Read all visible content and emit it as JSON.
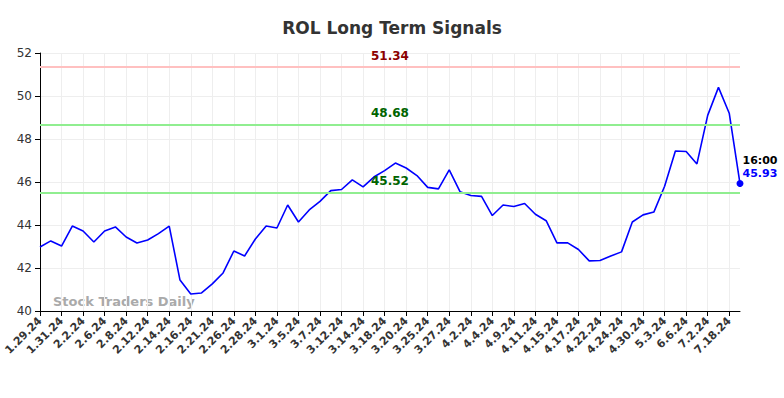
{
  "chart_data": {
    "type": "line",
    "title": "ROL Long Term Signals",
    "categories": [
      "1.29.24",
      null,
      "1.31.24",
      null,
      "2.2.24",
      null,
      "2.6.24",
      null,
      "2.8.24",
      null,
      "2.12.24",
      null,
      "2.14.24",
      null,
      "2.16.24",
      null,
      "2.21.24",
      null,
      "2.26.24",
      null,
      "2.28.24",
      null,
      "3.1.24",
      null,
      "3.5.24",
      null,
      "3.7.24",
      null,
      "3.12.24",
      null,
      "3.14.24",
      null,
      "3.18.24",
      null,
      "3.20.24",
      null,
      "3.25.24",
      null,
      "3.27.24",
      null,
      "4.2.24",
      null,
      "4.4.24",
      null,
      "4.9.24",
      null,
      "4.11.24",
      null,
      "4.15.24",
      null,
      "4.17.24",
      null,
      "4.22.24",
      null,
      "4.24.24",
      null,
      "4.30.24",
      null,
      "5.3.24",
      null,
      "6.6.24",
      null,
      "7.2.24",
      null,
      "7.18.24",
      null
    ],
    "values": [
      42.98,
      43.26,
      43.02,
      43.95,
      43.72,
      43.21,
      43.72,
      43.91,
      43.44,
      43.16,
      43.3,
      43.6,
      43.95,
      41.44,
      40.79,
      40.84,
      41.26,
      41.77,
      42.79,
      42.56,
      43.35,
      43.95,
      43.86,
      44.93,
      44.14,
      44.7,
      45.1,
      45.6,
      45.65,
      46.1,
      45.77,
      46.23,
      46.53,
      46.88,
      46.65,
      46.3,
      45.75,
      45.68,
      46.56,
      45.55,
      45.37,
      45.33,
      44.44,
      44.93,
      44.86,
      45.0,
      44.5,
      44.2,
      43.17,
      43.17,
      42.86,
      42.33,
      42.35,
      42.56,
      42.75,
      44.14,
      44.47,
      44.6,
      45.8,
      47.44,
      47.42,
      46.84,
      49.1,
      50.4,
      49.2,
      45.93
    ],
    "color": "#0000ff",
    "ylim": [
      40,
      52
    ],
    "yticks": [
      40,
      42,
      44,
      46,
      48,
      50,
      52
    ],
    "grid": true,
    "reference_lines": [
      {
        "value": 51.34,
        "color": "#ffc0c0",
        "label_color": "#8b0000"
      },
      {
        "value": 48.68,
        "color": "#90ee90",
        "label_color": "#006400"
      },
      {
        "value": 45.52,
        "color": "#90ee90",
        "label_color": "#006400"
      }
    ],
    "last_point_annotation": "16:00",
    "watermark": "Stock Traders Daily"
  }
}
